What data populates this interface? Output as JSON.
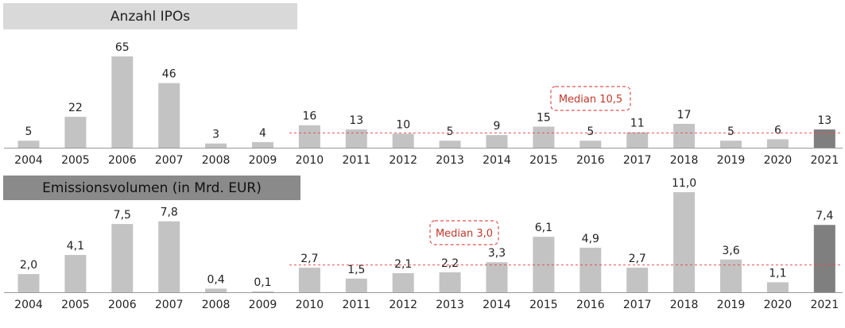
{
  "chart_data": [
    {
      "type": "bar",
      "title": "Anzahl IPOs",
      "categories": [
        "2004",
        "2005",
        "2006",
        "2007",
        "2008",
        "2009",
        "2010",
        "2011",
        "2012",
        "2013",
        "2014",
        "2015",
        "2016",
        "2017",
        "2018",
        "2019",
        "2020",
        "2021"
      ],
      "values": [
        5,
        22,
        65,
        46,
        3,
        4,
        16,
        13,
        10,
        5,
        9,
        15,
        5,
        11,
        17,
        5,
        6,
        13
      ],
      "value_labels": [
        "5",
        "22",
        "65",
        "46",
        "3",
        "4",
        "16",
        "13",
        "10",
        "5",
        "9",
        "15",
        "5",
        "11",
        "17",
        "5",
        "6",
        "13"
      ],
      "highlight_index": 17,
      "median": {
        "value": 10.5,
        "label": "Median 10,5",
        "from_index": 6
      },
      "colors": {
        "bar": "#c3c3c3",
        "highlight": "#7f7f7f",
        "median": "#e05050"
      }
    },
    {
      "type": "bar",
      "title": "Emissionsvolumen (in Mrd. EUR)",
      "categories": [
        "2004",
        "2005",
        "2006",
        "2007",
        "2008",
        "2009",
        "2010",
        "2011",
        "2012",
        "2013",
        "2014",
        "2015",
        "2016",
        "2017",
        "2018",
        "2019",
        "2020",
        "2021"
      ],
      "values": [
        2.0,
        4.1,
        7.5,
        7.8,
        0.4,
        0.1,
        2.7,
        1.5,
        2.1,
        2.2,
        3.3,
        6.1,
        4.9,
        2.7,
        11.0,
        3.6,
        1.1,
        7.4
      ],
      "value_labels": [
        "2,0",
        "4,1",
        "7,5",
        "7,8",
        "0,4",
        "0,1",
        "2,7",
        "1,5",
        "2,1",
        "2,2",
        "3,3",
        "6,1",
        "4,9",
        "2,7",
        "11,0",
        "3,6",
        "1,1",
        "7,4"
      ],
      "highlight_index": 17,
      "median": {
        "value": 3.0,
        "label": "Median 3,0",
        "from_index": 6
      },
      "colors": {
        "bar": "#c3c3c3",
        "highlight": "#7f7f7f",
        "median": "#e05050"
      }
    }
  ]
}
